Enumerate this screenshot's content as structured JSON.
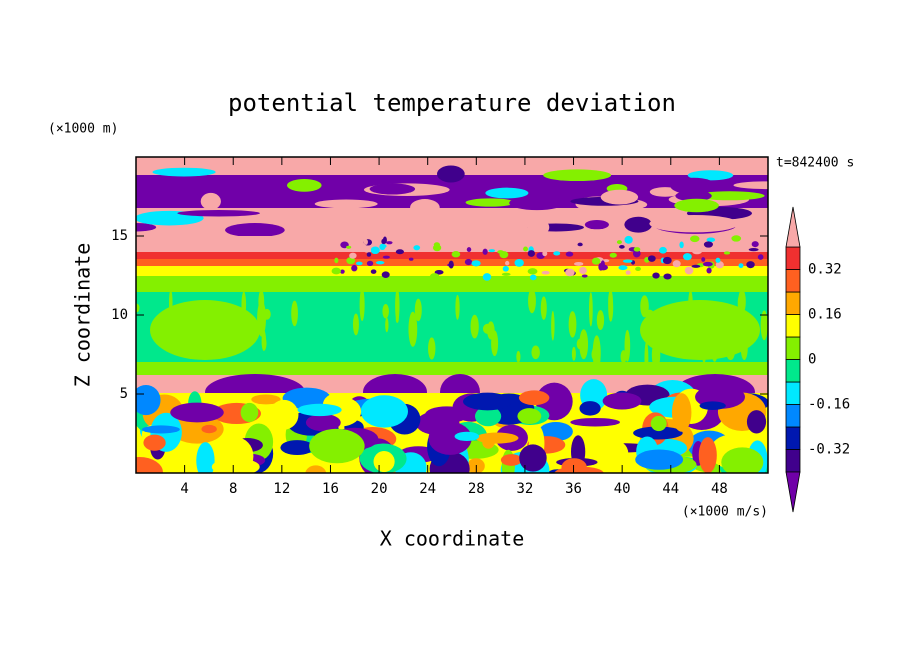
{
  "chart_data": {
    "type": "contour",
    "title": "potential temperature deviation",
    "y_unit": "(×1000 m)",
    "time_label": "t=842400 s",
    "ylabel": "Z coordinate",
    "xlabel": "X coordinate",
    "x_unit": "(×1000 m/s)",
    "xlim": [
      0,
      52
    ],
    "xticks": [
      4,
      8,
      12,
      16,
      20,
      24,
      28,
      32,
      36,
      40,
      44,
      48
    ],
    "ylim": [
      0,
      20
    ],
    "yticks": [
      5,
      10,
      15
    ],
    "colorbar": {
      "levels": [
        -0.4,
        -0.32,
        -0.24,
        -0.16,
        -0.08,
        0,
        0.08,
        0.16,
        0.24,
        0.32,
        0.4
      ],
      "ticks": [
        -0.32,
        -0.16,
        0,
        0.16,
        0.32
      ],
      "colors": [
        "#7000a8",
        "#40008c",
        "#0018b0",
        "#0088ff",
        "#00e8ff",
        "#00e88c",
        "#84f000",
        "#ffff00",
        "#ffa800",
        "#ff6020",
        "#f03030",
        "#f8a8a8"
      ]
    }
  }
}
